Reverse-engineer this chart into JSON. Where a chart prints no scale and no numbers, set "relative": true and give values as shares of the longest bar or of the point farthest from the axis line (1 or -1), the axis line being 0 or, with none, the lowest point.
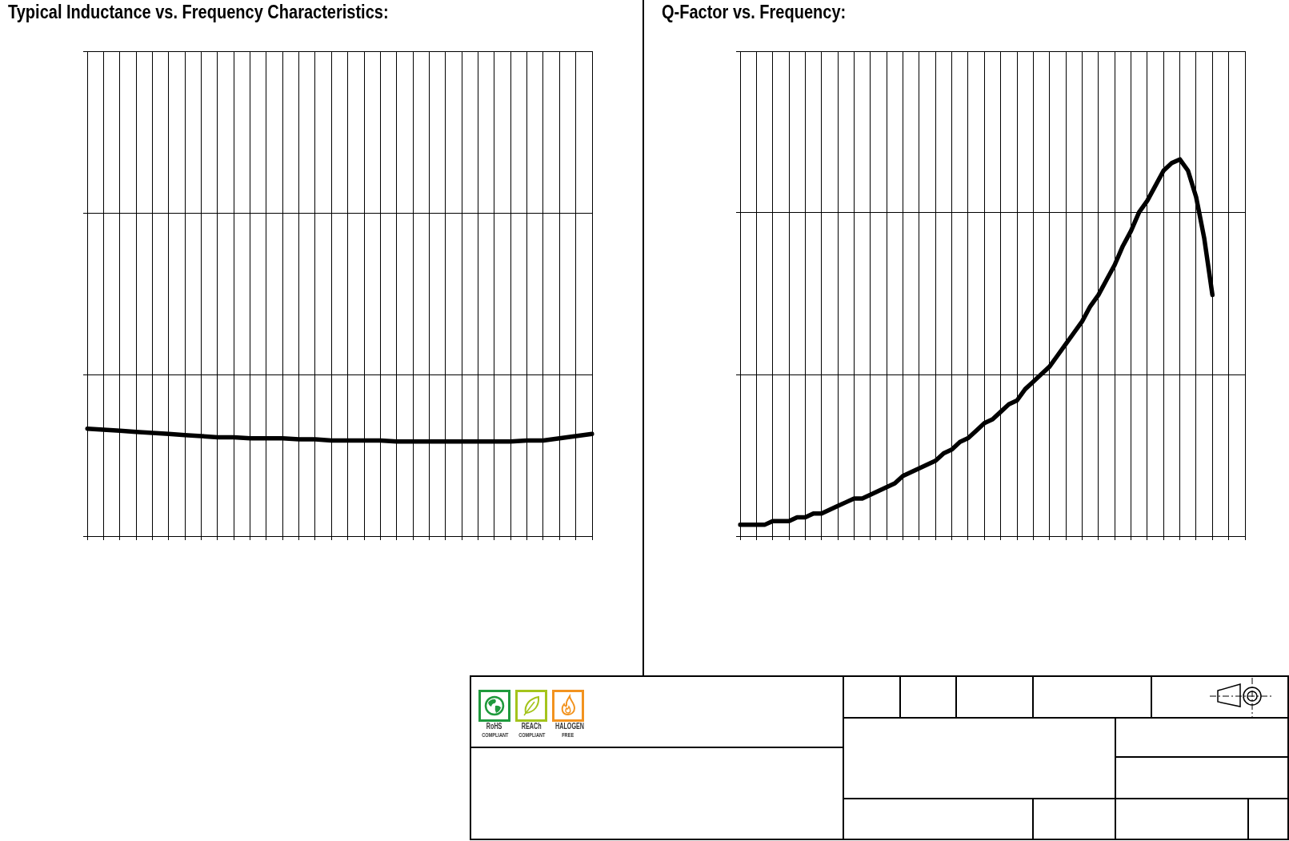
{
  "chart_data": [
    {
      "type": "line",
      "title": "Typical Inductance vs. Frequency Characteristics:",
      "relative": true,
      "grid": true,
      "tick_labels": false,
      "color": "#000000",
      "categories": [
        null,
        null,
        null,
        null,
        null,
        null,
        null,
        null,
        null,
        null,
        null,
        null,
        null,
        null,
        null,
        null,
        null,
        null,
        null,
        null,
        null,
        null,
        null,
        null,
        null,
        null,
        null,
        null,
        null,
        null,
        null,
        null
      ],
      "values": [
        1,
        0.99,
        0.98,
        0.97,
        0.96,
        0.95,
        0.94,
        0.93,
        0.92,
        0.92,
        0.91,
        0.91,
        0.91,
        0.9,
        0.9,
        0.89,
        0.89,
        0.89,
        0.89,
        0.88,
        0.88,
        0.88,
        0.88,
        0.88,
        0.88,
        0.88,
        0.88,
        0.89,
        0.89,
        0.91,
        0.93,
        0.95
      ]
    },
    {
      "type": "line",
      "title": "Q-Factor vs. Frequency:",
      "relative": true,
      "grid": true,
      "tick_labels": false,
      "color": "#000000",
      "categories": [
        null,
        null,
        null,
        null,
        null,
        null,
        null,
        null,
        null,
        null,
        null,
        null,
        null,
        null,
        null,
        null,
        null,
        null,
        null,
        null,
        null,
        null,
        null,
        null,
        null,
        null,
        null,
        null,
        null,
        null,
        null,
        null,
        null,
        null,
        null,
        null,
        null,
        null,
        null,
        null,
        null,
        null,
        null,
        null,
        null,
        null,
        null,
        null,
        null,
        null,
        null,
        null,
        null,
        null,
        null,
        null,
        null,
        null,
        null,
        null,
        null,
        null,
        null
      ],
      "values": [
        0.03,
        0.03,
        0.03,
        0.03,
        0.04,
        0.04,
        0.04,
        0.05,
        0.05,
        0.06,
        0.06,
        0.07,
        0.08,
        0.09,
        0.1,
        0.1,
        0.11,
        0.12,
        0.13,
        0.14,
        0.16,
        0.17,
        0.18,
        0.19,
        0.2,
        0.22,
        0.23,
        0.25,
        0.26,
        0.28,
        0.3,
        0.31,
        0.33,
        0.35,
        0.36,
        0.39,
        0.41,
        0.43,
        0.45,
        0.48,
        0.51,
        0.54,
        0.57,
        0.61,
        0.64,
        0.68,
        0.72,
        0.77,
        0.81,
        0.86,
        0.89,
        0.93,
        0.97,
        0.99,
        1,
        0.97,
        0.9,
        0.79,
        0.64,
        null,
        null,
        null,
        null
      ]
    },
    {
      "type": "other",
      "annotations": [
        "RoHS",
        "COMPLIANT",
        "REACh",
        "COMPLIANT",
        "HALOGEN",
        "FREE"
      ]
    }
  ]
}
